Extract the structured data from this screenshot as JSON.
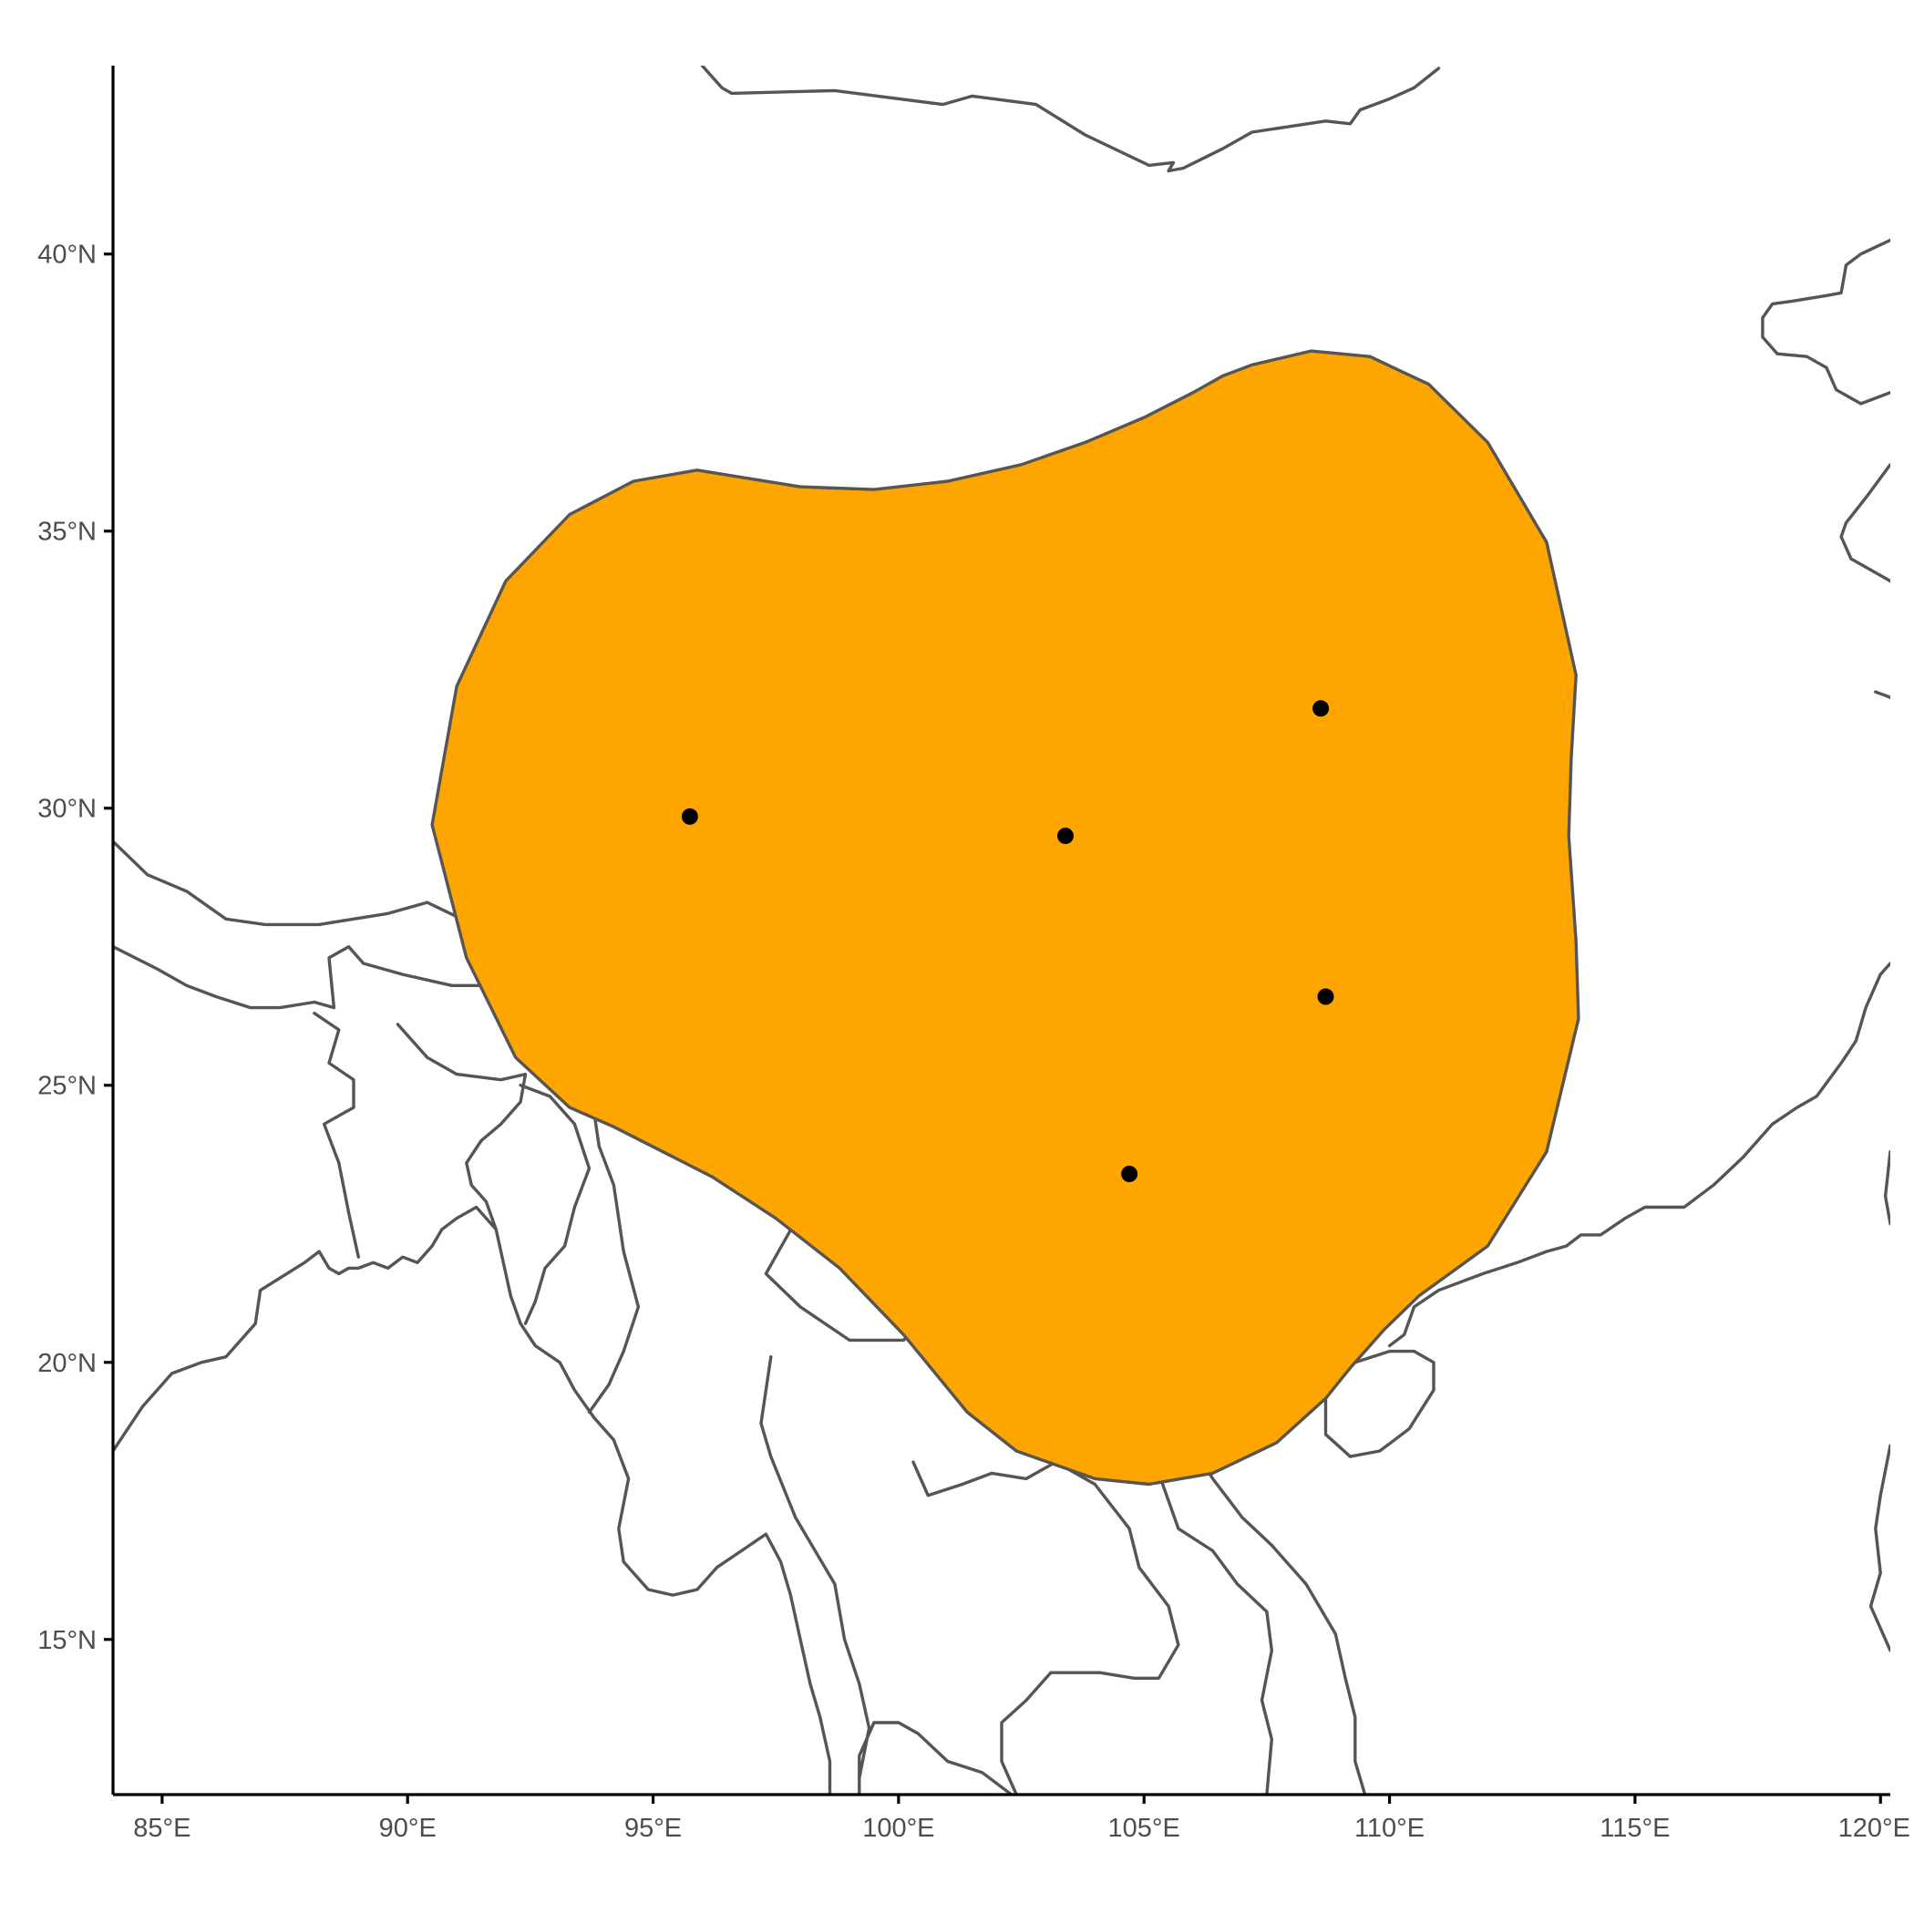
{
  "map": {
    "projection": "equirectangular",
    "lon_range": [
      84.0,
      120.2
    ],
    "lat_range": [
      12.2,
      43.4
    ],
    "colors": {
      "range_fill": "#FFA500",
      "range_outline": "#555555",
      "coastline": "#555555",
      "points": "#000000",
      "axis": "#000000",
      "tick_label": "#4d4d4d"
    },
    "x_axis": {
      "ticks": [
        85,
        90,
        95,
        100,
        105,
        110,
        115,
        120
      ],
      "labels": [
        "85°E",
        "90°E",
        "95°E",
        "100°E",
        "105°E",
        "110°E",
        "115°E",
        "120°E"
      ]
    },
    "y_axis": {
      "ticks": [
        15,
        20,
        25,
        30,
        35,
        40
      ],
      "labels": [
        "15°N",
        "20°N",
        "25°N",
        "30°N",
        "35°N",
        "40°N"
      ]
    },
    "range_polygon": [
      [
        90.5,
        29.7
      ],
      [
        91.0,
        32.2
      ],
      [
        92.0,
        34.1
      ],
      [
        93.3,
        35.3
      ],
      [
        94.6,
        35.9
      ],
      [
        95.9,
        36.1
      ],
      [
        96.6,
        36.0
      ],
      [
        98.0,
        35.8
      ],
      [
        99.5,
        35.75
      ],
      [
        101.0,
        35.9
      ],
      [
        102.5,
        36.2
      ],
      [
        103.8,
        36.6
      ],
      [
        105.0,
        37.05
      ],
      [
        106.0,
        37.5
      ],
      [
        106.6,
        37.8
      ],
      [
        107.2,
        38.0
      ],
      [
        108.4,
        38.25
      ],
      [
        109.6,
        38.15
      ],
      [
        110.8,
        37.65
      ],
      [
        112.0,
        36.6
      ],
      [
        113.2,
        34.8
      ],
      [
        113.8,
        32.4
      ],
      [
        113.7,
        30.9
      ],
      [
        113.65,
        29.5
      ],
      [
        113.8,
        27.6
      ],
      [
        113.85,
        26.2
      ],
      [
        113.2,
        23.8
      ],
      [
        112.0,
        22.1
      ],
      [
        110.6,
        21.2
      ],
      [
        109.9,
        20.6
      ],
      [
        109.2,
        19.9
      ],
      [
        108.7,
        19.35
      ],
      [
        107.7,
        18.55
      ],
      [
        106.4,
        18.0
      ],
      [
        105.1,
        17.8
      ],
      [
        104.0,
        17.9
      ],
      [
        102.4,
        18.4
      ],
      [
        101.4,
        19.1
      ],
      [
        100.1,
        20.5
      ],
      [
        98.8,
        21.7
      ],
      [
        97.5,
        22.6
      ],
      [
        96.2,
        23.35
      ],
      [
        95.2,
        23.8
      ],
      [
        94.2,
        24.25
      ],
      [
        93.3,
        24.6
      ],
      [
        92.2,
        25.5
      ],
      [
        91.2,
        27.3
      ]
    ],
    "occurrence_points": [
      {
        "lon": 95.75,
        "lat": 29.85
      },
      {
        "lon": 103.4,
        "lat": 29.5
      },
      {
        "lon": 108.6,
        "lat": 31.8
      },
      {
        "lon": 108.7,
        "lat": 26.6
      },
      {
        "lon": 104.7,
        "lat": 23.4
      }
    ],
    "coastlines": [
      [
        [
          96.0,
          43.4
        ],
        [
          96.4,
          43.0
        ],
        [
          96.6,
          42.9
        ],
        [
          98.7,
          42.95
        ],
        [
          100.9,
          42.7
        ],
        [
          101.5,
          42.85
        ],
        [
          102.8,
          42.7
        ],
        [
          103.8,
          42.15
        ],
        [
          105.1,
          41.6
        ],
        [
          105.6,
          41.65
        ],
        [
          105.5,
          41.5
        ],
        [
          105.8,
          41.55
        ],
        [
          106.6,
          41.9
        ],
        [
          107.2,
          42.2
        ],
        [
          108.7,
          42.4
        ],
        [
          109.2,
          42.35
        ],
        [
          109.4,
          42.6
        ],
        [
          110.0,
          42.8
        ],
        [
          110.5,
          43.0
        ],
        [
          111.0,
          43.35
        ]
      ],
      [
        [
          120.2,
          40.25
        ],
        [
          119.6,
          40.0
        ],
        [
          119.3,
          39.8
        ],
        [
          119.2,
          39.3
        ],
        [
          118.9,
          39.25
        ],
        [
          118.2,
          39.15
        ],
        [
          117.8,
          39.1
        ],
        [
          117.6,
          38.85
        ],
        [
          117.6,
          38.5
        ],
        [
          117.9,
          38.2
        ],
        [
          118.5,
          38.15
        ],
        [
          118.9,
          37.95
        ],
        [
          119.1,
          37.55
        ],
        [
          119.6,
          37.3
        ],
        [
          120.2,
          37.5
        ]
      ],
      [
        [
          120.2,
          36.2
        ],
        [
          119.7,
          35.6
        ],
        [
          119.3,
          35.15
        ],
        [
          119.2,
          34.9
        ],
        [
          119.4,
          34.5
        ],
        [
          120.2,
          34.1
        ]
      ],
      [
        [
          120.2,
          32.0
        ],
        [
          119.9,
          32.1
        ]
      ],
      [
        [
          120.2,
          27.2
        ],
        [
          120.0,
          27.0
        ],
        [
          119.7,
          26.4
        ],
        [
          119.5,
          25.8
        ],
        [
          119.2,
          25.4
        ],
        [
          118.7,
          24.8
        ],
        [
          118.3,
          24.6
        ],
        [
          117.8,
          24.3
        ],
        [
          117.2,
          23.7
        ],
        [
          116.6,
          23.2
        ],
        [
          116.0,
          22.8
        ],
        [
          115.2,
          22.8
        ],
        [
          114.8,
          22.6
        ],
        [
          114.3,
          22.3
        ],
        [
          113.9,
          22.3
        ],
        [
          113.6,
          22.1
        ],
        [
          113.2,
          22.0
        ],
        [
          112.6,
          21.8
        ],
        [
          111.9,
          21.6
        ],
        [
          111.0,
          21.3
        ],
        [
          110.5,
          21.0
        ],
        [
          110.3,
          20.5
        ],
        [
          110.0,
          20.3
        ]
      ],
      [
        [
          120.2,
          23.8
        ],
        [
          120.1,
          23.0
        ],
        [
          120.2,
          22.5
        ]
      ],
      [
        [
          110.0,
          20.2
        ],
        [
          109.3,
          20.0
        ],
        [
          108.7,
          19.6
        ],
        [
          108.7,
          18.7
        ],
        [
          109.2,
          18.3
        ],
        [
          109.8,
          18.4
        ],
        [
          110.4,
          18.8
        ],
        [
          110.9,
          19.5
        ],
        [
          110.9,
          20.0
        ],
        [
          110.5,
          20.2
        ],
        [
          110.0,
          20.2
        ]
      ],
      [
        [
          109.5,
          12.2
        ],
        [
          109.3,
          12.8
        ],
        [
          109.3,
          13.6
        ],
        [
          109.1,
          14.3
        ],
        [
          108.9,
          15.1
        ],
        [
          108.3,
          16.0
        ],
        [
          107.6,
          16.7
        ],
        [
          107.0,
          17.2
        ],
        [
          106.4,
          17.9
        ],
        [
          105.9,
          18.6
        ],
        [
          105.8,
          19.5
        ],
        [
          106.5,
          20.3
        ],
        [
          107.0,
          21.0
        ],
        [
          107.8,
          21.6
        ],
        [
          108.5,
          21.6
        ],
        [
          109.3,
          21.5
        ],
        [
          109.9,
          21.4
        ]
      ],
      [
        [
          120.2,
          18.5
        ],
        [
          120.0,
          17.6
        ],
        [
          119.9,
          17.0
        ],
        [
          120.0,
          16.2
        ],
        [
          119.8,
          15.6
        ],
        [
          120.2,
          14.8
        ]
      ],
      [
        [
          84.0,
          18.4
        ],
        [
          84.6,
          19.2
        ],
        [
          85.2,
          19.8
        ],
        [
          85.8,
          20.0
        ],
        [
          86.3,
          20.1
        ],
        [
          86.9,
          20.7
        ],
        [
          87.0,
          21.3
        ],
        [
          87.9,
          21.8
        ],
        [
          88.2,
          22.0
        ],
        [
          88.4,
          21.7
        ],
        [
          88.6,
          21.6
        ],
        [
          88.8,
          21.7
        ],
        [
          89.0,
          21.7
        ],
        [
          89.3,
          21.8
        ],
        [
          89.6,
          21.7
        ],
        [
          89.9,
          21.9
        ],
        [
          90.2,
          21.8
        ],
        [
          90.5,
          22.1
        ],
        [
          90.7,
          22.4
        ],
        [
          91.0,
          22.6
        ],
        [
          91.4,
          22.8
        ],
        [
          91.8,
          22.4
        ],
        [
          91.9,
          22.0
        ],
        [
          92.1,
          21.2
        ],
        [
          92.3,
          20.7
        ],
        [
          92.6,
          20.3
        ],
        [
          93.1,
          20.0
        ],
        [
          93.4,
          19.5
        ],
        [
          93.8,
          19.0
        ],
        [
          94.2,
          18.6
        ],
        [
          94.5,
          17.9
        ],
        [
          94.3,
          17.0
        ],
        [
          94.4,
          16.4
        ],
        [
          94.9,
          15.9
        ],
        [
          95.4,
          15.8
        ],
        [
          95.9,
          15.9
        ],
        [
          96.3,
          16.3
        ],
        [
          96.8,
          16.6
        ],
        [
          97.3,
          16.9
        ],
        [
          97.6,
          16.4
        ],
        [
          97.8,
          15.8
        ],
        [
          98.0,
          15.0
        ],
        [
          98.2,
          14.2
        ],
        [
          98.4,
          13.6
        ],
        [
          98.6,
          12.8
        ],
        [
          98.6,
          12.2
        ]
      ],
      [
        [
          99.2,
          12.2
        ],
        [
          99.2,
          12.9
        ],
        [
          99.5,
          13.5
        ],
        [
          100.0,
          13.5
        ],
        [
          100.4,
          13.3
        ],
        [
          101.0,
          12.8
        ],
        [
          101.7,
          12.6
        ],
        [
          102.3,
          12.2
        ]
      ],
      [
        [
          84.0,
          29.4
        ],
        [
          84.7,
          28.8
        ],
        [
          85.5,
          28.5
        ],
        [
          86.3,
          28.0
        ],
        [
          87.1,
          27.9
        ],
        [
          88.2,
          27.9
        ],
        [
          88.9,
          28.0
        ],
        [
          89.6,
          28.1
        ],
        [
          90.4,
          28.3
        ],
        [
          91.1,
          28.0
        ],
        [
          92.0,
          27.8
        ],
        [
          92.7,
          27.9
        ]
      ],
      [
        [
          84.0,
          27.5
        ],
        [
          84.9,
          27.1
        ],
        [
          85.5,
          26.8
        ],
        [
          86.1,
          26.6
        ],
        [
          86.8,
          26.4
        ],
        [
          87.4,
          26.4
        ],
        [
          88.1,
          26.5
        ],
        [
          88.5,
          26.4
        ],
        [
          88.4,
          27.3
        ],
        [
          88.8,
          27.5
        ],
        [
          89.1,
          27.2
        ],
        [
          89.9,
          27.0
        ],
        [
          90.9,
          26.8
        ],
        [
          91.8,
          26.8
        ],
        [
          92.1,
          27.1
        ],
        [
          92.2,
          27.7
        ]
      ],
      [
        [
          88.1,
          26.3
        ],
        [
          88.6,
          26.0
        ],
        [
          88.4,
          25.4
        ],
        [
          88.9,
          25.1
        ],
        [
          88.9,
          24.6
        ],
        [
          88.3,
          24.3
        ],
        [
          88.6,
          23.6
        ],
        [
          88.8,
          22.7
        ],
        [
          89.0,
          21.9
        ]
      ],
      [
        [
          89.8,
          26.1
        ],
        [
          90.4,
          25.5
        ],
        [
          91.0,
          25.2
        ],
        [
          91.9,
          25.1
        ],
        [
          92.4,
          25.2
        ],
        [
          92.3,
          24.7
        ],
        [
          91.9,
          24.3
        ],
        [
          91.5,
          24.0
        ],
        [
          91.2,
          23.6
        ],
        [
          91.3,
          23.2
        ],
        [
          91.6,
          22.9
        ],
        [
          91.8,
          22.4
        ]
      ],
      [
        [
          92.3,
          25.0
        ],
        [
          92.9,
          24.8
        ],
        [
          93.4,
          24.3
        ],
        [
          93.7,
          23.5
        ],
        [
          93.4,
          22.8
        ],
        [
          93.2,
          22.1
        ],
        [
          92.8,
          21.7
        ],
        [
          92.6,
          21.1
        ],
        [
          92.4,
          20.7
        ]
      ],
      [
        [
          93.8,
          24.5
        ],
        [
          93.9,
          23.9
        ],
        [
          94.2,
          23.2
        ],
        [
          94.4,
          22.0
        ],
        [
          94.7,
          21.0
        ],
        [
          94.4,
          20.2
        ],
        [
          94.1,
          19.6
        ],
        [
          93.7,
          19.1
        ]
      ],
      [
        [
          98.7,
          24.1
        ],
        [
          98.4,
          23.2
        ],
        [
          98.0,
          22.7
        ],
        [
          97.3,
          21.6
        ],
        [
          98.0,
          21.0
        ],
        [
          99.0,
          20.4
        ],
        [
          100.1,
          20.4
        ],
        [
          100.5,
          20.7
        ],
        [
          101.2,
          21.2
        ],
        [
          101.7,
          22.0
        ],
        [
          102.5,
          22.7
        ],
        [
          103.5,
          22.6
        ],
        [
          104.3,
          22.7
        ],
        [
          105.2,
          23.0
        ],
        [
          106.1,
          22.8
        ],
        [
          106.7,
          22.3
        ],
        [
          107.4,
          21.9
        ],
        [
          108.0,
          21.5
        ]
      ],
      [
        [
          97.4,
          20.1
        ],
        [
          97.2,
          18.9
        ],
        [
          97.4,
          18.3
        ],
        [
          97.9,
          17.2
        ],
        [
          98.7,
          16.0
        ],
        [
          98.9,
          15.0
        ],
        [
          99.2,
          14.2
        ],
        [
          99.4,
          13.4
        ],
        [
          99.2,
          12.5
        ]
      ],
      [
        [
          100.3,
          18.2
        ],
        [
          100.6,
          17.6
        ],
        [
          101.3,
          17.8
        ],
        [
          101.9,
          18.0
        ],
        [
          102.6,
          17.9
        ],
        [
          103.2,
          18.2
        ],
        [
          104.0,
          17.8
        ],
        [
          104.7,
          17.0
        ],
        [
          104.9,
          16.3
        ],
        [
          105.5,
          15.6
        ],
        [
          105.7,
          14.9
        ],
        [
          105.3,
          14.3
        ],
        [
          104.8,
          14.3
        ],
        [
          104.1,
          14.4
        ],
        [
          103.1,
          14.4
        ],
        [
          102.6,
          13.9
        ],
        [
          102.1,
          13.5
        ],
        [
          102.1,
          12.8
        ],
        [
          102.4,
          12.2
        ]
      ],
      [
        [
          105.3,
          18.0
        ],
        [
          105.7,
          17.0
        ],
        [
          106.4,
          16.6
        ],
        [
          106.9,
          16.0
        ],
        [
          107.5,
          15.5
        ],
        [
          107.6,
          14.8
        ],
        [
          107.4,
          13.9
        ],
        [
          107.6,
          13.2
        ],
        [
          107.5,
          12.2
        ]
      ]
    ]
  }
}
